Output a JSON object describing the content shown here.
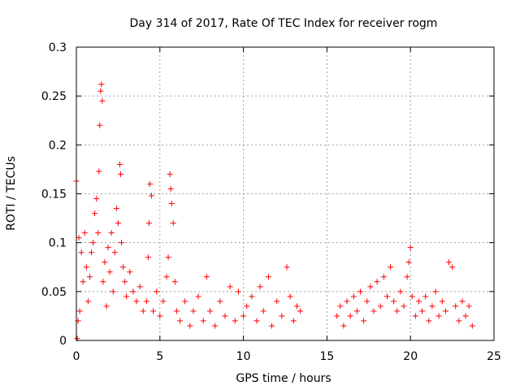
{
  "chart_data": {
    "type": "scatter",
    "title": "Day 314 of 2017, Rate Of TEC Index for receiver rogm",
    "xlabel": "GPS time / hours",
    "ylabel": "ROTI / TECUs",
    "xlim": [
      0,
      25
    ],
    "ylim": [
      0,
      0.3
    ],
    "xticks": [
      0,
      5,
      10,
      15,
      20,
      25
    ],
    "yticks": [
      0,
      0.05,
      0.1,
      0.15,
      0.2,
      0.25,
      0.3
    ],
    "xtick_labels": [
      "0",
      "5",
      "10",
      "15",
      "20",
      "25"
    ],
    "ytick_labels": [
      "0",
      "0.05",
      "0.1",
      "0.15",
      "0.2",
      "0.25",
      "0.3"
    ],
    "grid": true,
    "marker": "+",
    "color": "#ff0000",
    "data_gap_hours": [
      13.5,
      15.6
    ],
    "series": [
      {
        "name": "ROTI",
        "points": [
          [
            0.0,
            0.163
          ],
          [
            0.05,
            0.002
          ],
          [
            0.1,
            0.02
          ],
          [
            0.15,
            0.105
          ],
          [
            0.2,
            0.03
          ],
          [
            0.3,
            0.09
          ],
          [
            0.4,
            0.06
          ],
          [
            0.5,
            0.11
          ],
          [
            0.6,
            0.075
          ],
          [
            0.7,
            0.04
          ],
          [
            0.8,
            0.065
          ],
          [
            0.9,
            0.09
          ],
          [
            1.0,
            0.1
          ],
          [
            1.1,
            0.13
          ],
          [
            1.2,
            0.145
          ],
          [
            1.3,
            0.11
          ],
          [
            1.35,
            0.173
          ],
          [
            1.4,
            0.22
          ],
          [
            1.45,
            0.255
          ],
          [
            1.5,
            0.262
          ],
          [
            1.55,
            0.245
          ],
          [
            1.6,
            0.06
          ],
          [
            1.7,
            0.08
          ],
          [
            1.8,
            0.035
          ],
          [
            1.9,
            0.095
          ],
          [
            2.0,
            0.07
          ],
          [
            2.1,
            0.11
          ],
          [
            2.2,
            0.05
          ],
          [
            2.3,
            0.09
          ],
          [
            2.4,
            0.135
          ],
          [
            2.5,
            0.12
          ],
          [
            2.6,
            0.18
          ],
          [
            2.65,
            0.17
          ],
          [
            2.7,
            0.1
          ],
          [
            2.8,
            0.075
          ],
          [
            2.9,
            0.06
          ],
          [
            3.0,
            0.045
          ],
          [
            3.2,
            0.07
          ],
          [
            3.4,
            0.05
          ],
          [
            3.6,
            0.04
          ],
          [
            3.8,
            0.055
          ],
          [
            4.0,
            0.03
          ],
          [
            4.2,
            0.04
          ],
          [
            4.3,
            0.085
          ],
          [
            4.35,
            0.12
          ],
          [
            4.4,
            0.16
          ],
          [
            4.5,
            0.148
          ],
          [
            4.6,
            0.03
          ],
          [
            4.8,
            0.05
          ],
          [
            5.0,
            0.025
          ],
          [
            5.2,
            0.04
          ],
          [
            5.4,
            0.065
          ],
          [
            5.5,
            0.085
          ],
          [
            5.6,
            0.17
          ],
          [
            5.65,
            0.155
          ],
          [
            5.7,
            0.14
          ],
          [
            5.8,
            0.12
          ],
          [
            5.9,
            0.06
          ],
          [
            6.0,
            0.03
          ],
          [
            6.2,
            0.02
          ],
          [
            6.5,
            0.04
          ],
          [
            6.8,
            0.015
          ],
          [
            7.0,
            0.03
          ],
          [
            7.3,
            0.045
          ],
          [
            7.6,
            0.02
          ],
          [
            7.8,
            0.065
          ],
          [
            8.0,
            0.03
          ],
          [
            8.3,
            0.015
          ],
          [
            8.6,
            0.04
          ],
          [
            8.9,
            0.025
          ],
          [
            9.2,
            0.055
          ],
          [
            9.5,
            0.02
          ],
          [
            9.7,
            0.05
          ],
          [
            10.0,
            0.025
          ],
          [
            10.2,
            0.035
          ],
          [
            10.5,
            0.045
          ],
          [
            10.8,
            0.02
          ],
          [
            11.0,
            0.055
          ],
          [
            11.2,
            0.03
          ],
          [
            11.5,
            0.065
          ],
          [
            11.7,
            0.015
          ],
          [
            12.0,
            0.04
          ],
          [
            12.3,
            0.025
          ],
          [
            12.6,
            0.075
          ],
          [
            12.8,
            0.045
          ],
          [
            13.0,
            0.02
          ],
          [
            13.2,
            0.035
          ],
          [
            13.4,
            0.03
          ],
          [
            15.6,
            0.025
          ],
          [
            15.8,
            0.035
          ],
          [
            16.0,
            0.015
          ],
          [
            16.2,
            0.04
          ],
          [
            16.4,
            0.025
          ],
          [
            16.6,
            0.045
          ],
          [
            16.8,
            0.03
          ],
          [
            17.0,
            0.05
          ],
          [
            17.2,
            0.02
          ],
          [
            17.4,
            0.04
          ],
          [
            17.6,
            0.055
          ],
          [
            17.8,
            0.03
          ],
          [
            18.0,
            0.06
          ],
          [
            18.2,
            0.035
          ],
          [
            18.4,
            0.065
          ],
          [
            18.6,
            0.045
          ],
          [
            18.8,
            0.075
          ],
          [
            19.0,
            0.04
          ],
          [
            19.2,
            0.03
          ],
          [
            19.4,
            0.05
          ],
          [
            19.6,
            0.035
          ],
          [
            19.8,
            0.065
          ],
          [
            19.9,
            0.08
          ],
          [
            20.0,
            0.095
          ],
          [
            20.1,
            0.045
          ],
          [
            20.3,
            0.025
          ],
          [
            20.5,
            0.04
          ],
          [
            20.7,
            0.03
          ],
          [
            20.9,
            0.045
          ],
          [
            21.1,
            0.02
          ],
          [
            21.3,
            0.035
          ],
          [
            21.5,
            0.05
          ],
          [
            21.7,
            0.025
          ],
          [
            21.9,
            0.04
          ],
          [
            22.1,
            0.03
          ],
          [
            22.3,
            0.08
          ],
          [
            22.5,
            0.075
          ],
          [
            22.7,
            0.035
          ],
          [
            22.9,
            0.02
          ],
          [
            23.1,
            0.04
          ],
          [
            23.3,
            0.025
          ],
          [
            23.5,
            0.035
          ],
          [
            23.7,
            0.015
          ]
        ]
      }
    ]
  }
}
